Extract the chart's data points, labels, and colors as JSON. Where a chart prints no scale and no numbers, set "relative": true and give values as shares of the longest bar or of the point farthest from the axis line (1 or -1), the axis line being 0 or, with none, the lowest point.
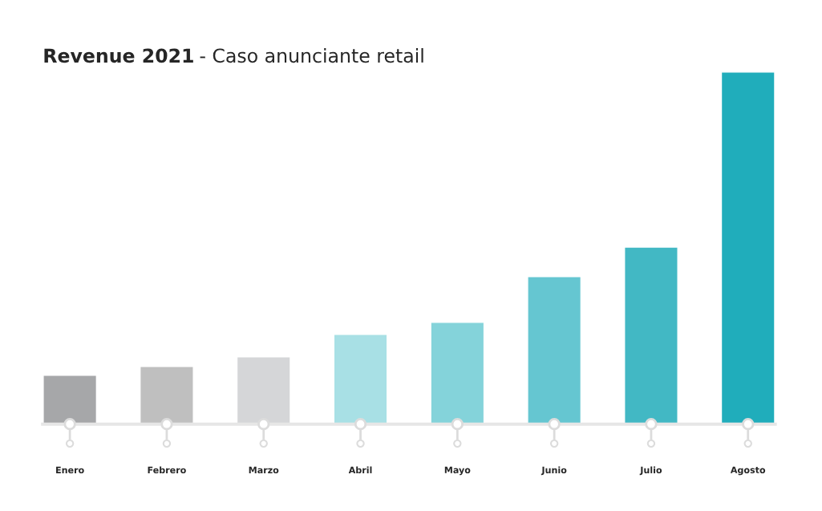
{
  "chart_data": {
    "type": "bar",
    "title": "Revenue 2021",
    "subtitle": "- Caso anunciante retail",
    "relative": true,
    "categories": [
      "Enero",
      "Febrero",
      "Marzo",
      "Abril",
      "Mayo",
      "Junio",
      "Julio",
      "Agosto"
    ],
    "values": [
      0.139,
      0.164,
      0.191,
      0.255,
      0.289,
      0.419,
      0.503,
      1
    ],
    "colors": [
      "#a6a7a9",
      "#bfbfbf",
      "#d5d6d8",
      "#a8e0e5",
      "#84d3da",
      "#65c6d1",
      "#42b8c4",
      "#20adbb"
    ],
    "grid": false,
    "legend": false
  }
}
